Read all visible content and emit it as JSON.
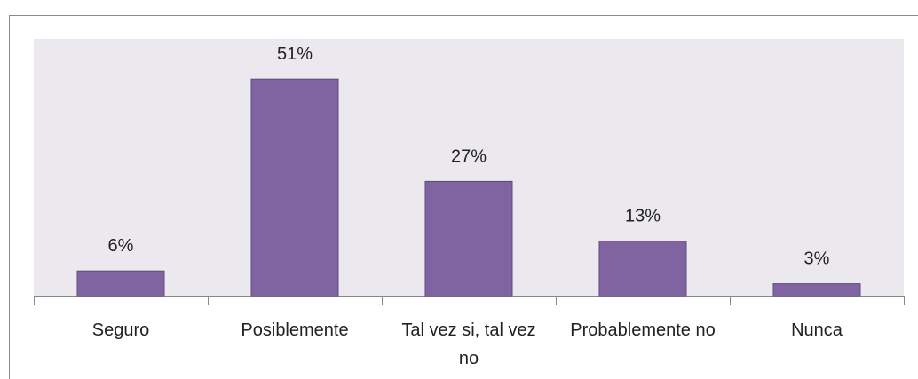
{
  "chart_data": {
    "type": "bar",
    "categories": [
      "Seguro",
      "Posiblemente",
      "Tal vez si, tal vez no",
      "Probablemente no",
      "Nunca"
    ],
    "values": [
      6,
      51,
      27,
      13,
      3
    ],
    "value_labels": [
      "6%",
      "51%",
      "27%",
      "13%",
      "3%"
    ],
    "color": "#8064a2"
  }
}
